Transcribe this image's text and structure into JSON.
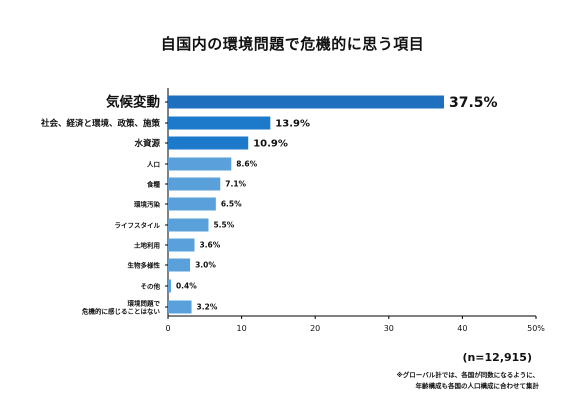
{
  "title": "自国内の環境問題で危機的に思う項目",
  "sample_note": "(n=12,915)",
  "footnote": [
    "※グローバル計では、各国が同数になるように、",
    "年齢構成も各国の人口構成に合わせて集計"
  ],
  "colors": {
    "bar_top": "#1f6fbf",
    "bar_main": "#1d7acb",
    "bar_mid": "#5aa0da",
    "axis": "#000000"
  },
  "chart_data": {
    "type": "bar",
    "orientation": "horizontal",
    "categories": [
      "気候変動",
      "社会、経済と環境、政策、施策",
      "水資源",
      "人口",
      "食糧",
      "環境汚染",
      "ライフスタイル",
      "土地利用",
      "生物多様性",
      "その他",
      "環境問題で\n危機的に感じることはない"
    ],
    "values": [
      37.5,
      13.9,
      10.9,
      8.6,
      7.1,
      6.5,
      5.5,
      3.6,
      3.0,
      0.4,
      3.2
    ],
    "value_labels": [
      "37.5%",
      "13.9%",
      "10.9%",
      "8.6%",
      "7.1%",
      "6.5%",
      "5.5%",
      "3.6%",
      "3.0%",
      "0.4%",
      "3.2%"
    ],
    "x_ticks": [
      "0",
      "10",
      "20",
      "30",
      "40",
      "50%"
    ],
    "xlim": [
      0,
      50
    ],
    "grid": false,
    "legend": "none"
  }
}
